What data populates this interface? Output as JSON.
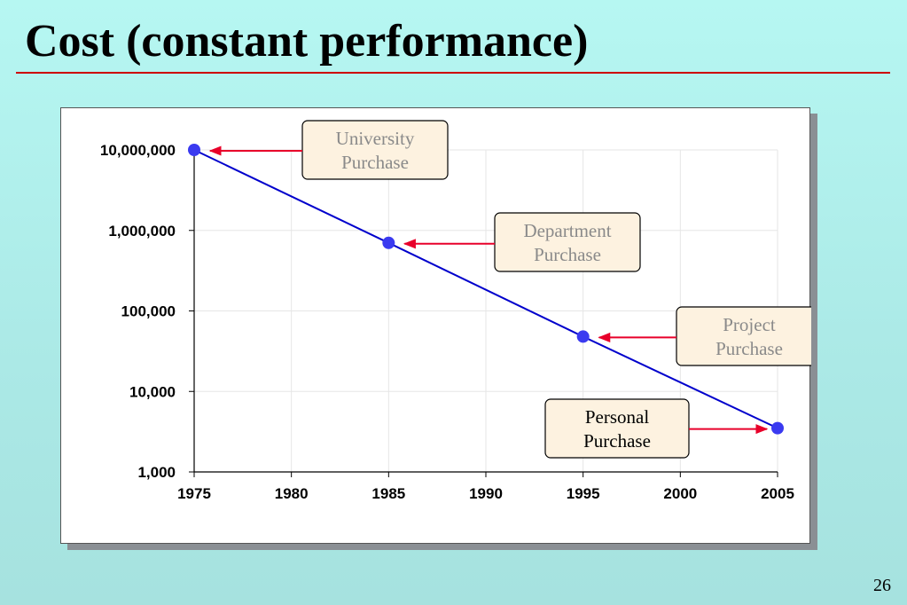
{
  "slide": {
    "title": "Cost (constant performance)",
    "page_number": "26"
  },
  "chart_data": {
    "type": "line",
    "scale_y": "log",
    "x": [
      1975,
      1985,
      1995,
      2005
    ],
    "series": [
      {
        "values": [
          10000000,
          700000,
          48000,
          3500
        ]
      }
    ],
    "xlim": [
      1975,
      2005
    ],
    "ylim": [
      1000,
      10000000
    ],
    "x_ticks": [
      1975,
      1980,
      1985,
      1990,
      1995,
      2000,
      2005
    ],
    "x_tick_labels": [
      "1975",
      "1980",
      "1985",
      "1990",
      "1995",
      "2000",
      "2005"
    ],
    "y_ticks": [
      1000,
      10000,
      100000,
      1000000,
      10000000
    ],
    "y_tick_labels": [
      "1,000",
      "10,000",
      "100,000",
      "1,000,000",
      "10,000,000"
    ],
    "grid": true,
    "annotations": [
      {
        "line1": "University",
        "line2": "Purchase",
        "x": 1975,
        "y": 10000000,
        "style": "faded"
      },
      {
        "line1": "Department",
        "line2": "Purchase",
        "x": 1985,
        "y": 700000,
        "style": "faded"
      },
      {
        "line1": "Project",
        "line2": "Purchase",
        "x": 1995,
        "y": 48000,
        "style": "faded"
      },
      {
        "line1": "Personal",
        "line2": "Purchase",
        "x": 2005,
        "y": 3500,
        "style": "active"
      }
    ],
    "colors": {
      "line": "#0000cc",
      "marker": "#3a3af0",
      "arrow": "#e8002a",
      "box_fill": "#fdf2e0",
      "faded_text": "#8a8a8a",
      "active_text": "#000000",
      "grid": "#e6e6e6"
    }
  }
}
